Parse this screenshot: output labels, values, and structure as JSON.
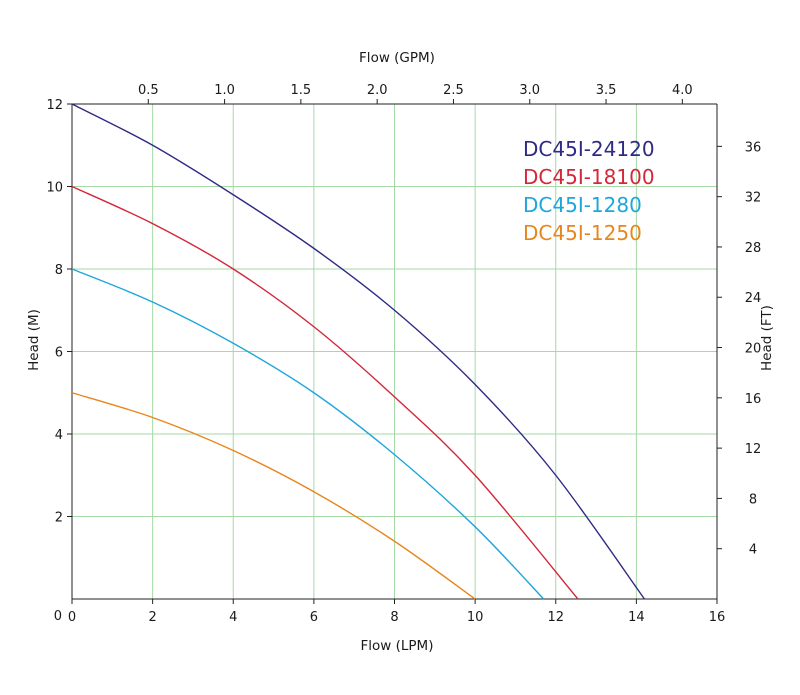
{
  "chart_data": {
    "type": "line",
    "title": "",
    "xlabel": "Flow (LPM)",
    "x2label": "Flow (GPM)",
    "ylabel": "Head (M)",
    "y2label": "Head (FT)",
    "xlim": [
      0,
      16
    ],
    "ylim": [
      0,
      12
    ],
    "x_ticks": [
      0,
      2,
      4,
      6,
      8,
      10,
      12,
      14,
      16
    ],
    "y_ticks": [
      2,
      4,
      6,
      8,
      10,
      12
    ],
    "y_zero_label": "0",
    "x2_ticks": [
      "0.5",
      "1.0",
      "1.5",
      "2.0",
      "2.5",
      "3.0",
      "3.5",
      "4.0"
    ],
    "y2_ticks": [
      "4",
      "8",
      "12",
      "16",
      "20",
      "24",
      "28",
      "32",
      "36"
    ],
    "grid": true,
    "legend_position": "top-right",
    "series": [
      {
        "name": "DC45I-24120",
        "color": "#2e2a86",
        "x": [
          0,
          2,
          4,
          6,
          8,
          10,
          12,
          14.2
        ],
        "y": [
          12.0,
          11.0,
          9.8,
          8.5,
          7.0,
          5.2,
          3.0,
          0.0
        ]
      },
      {
        "name": "DC45I-18100",
        "color": "#d3273a",
        "x": [
          0,
          2,
          4,
          6,
          8,
          10,
          12.55
        ],
        "y": [
          10.0,
          9.1,
          8.0,
          6.6,
          4.9,
          3.0,
          0.0
        ]
      },
      {
        "name": "DC45I-1280",
        "color": "#1ea6dc",
        "x": [
          0,
          2,
          4,
          6,
          8,
          10,
          11.7
        ],
        "y": [
          8.0,
          7.2,
          6.2,
          5.0,
          3.5,
          1.75,
          0.0
        ]
      },
      {
        "name": "DC45I-1250",
        "color": "#e8861e",
        "x": [
          0,
          2,
          4,
          6,
          8,
          10.0
        ],
        "y": [
          5.0,
          4.4,
          3.6,
          2.6,
          1.4,
          0.0
        ]
      }
    ]
  }
}
